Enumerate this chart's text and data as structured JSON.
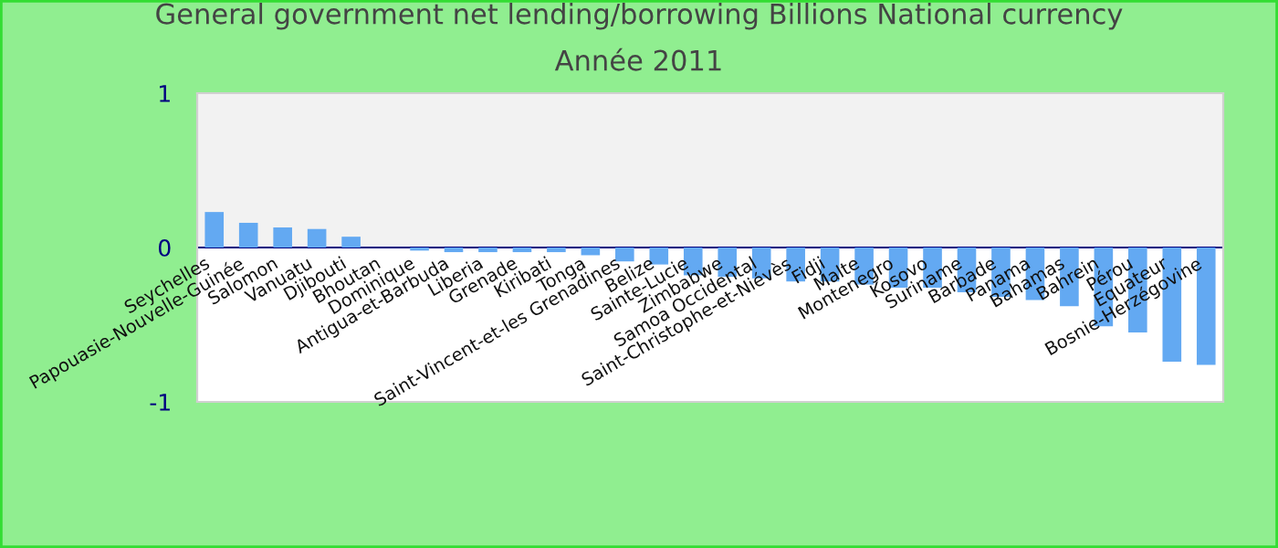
{
  "chart_data": {
    "type": "bar",
    "title": "General government net lending/borrowing Billions National currency",
    "subtitle": "Année 2011",
    "categories": [
      "Seychelles",
      "Papouasie-Nouvelle-Guinée",
      "Salomon",
      "Vanuatu",
      "Djibouti",
      "Bhoutan",
      "Dominique",
      "Antigua-et-Barbuda",
      "Liberia",
      "Grenade",
      "Kiribati",
      "Tonga",
      "Saint-Vincent-et-les Grenadines",
      "Belize",
      "Sainte-Lucie",
      "Zimbabwe",
      "Samoa Occidental",
      "Saint-Christophe-et-Niévès",
      "Fidji",
      "Malte",
      "Montenegro",
      "Kosovo",
      "Suriname",
      "Barbade",
      "Panama",
      "Bahamas",
      "Bahrein",
      "Pérou",
      "Equateur",
      "Bosnie-Herzégovine"
    ],
    "values": [
      0.23,
      0.16,
      0.13,
      0.12,
      0.07,
      0,
      -0.02,
      -0.03,
      -0.03,
      -0.03,
      -0.03,
      -0.05,
      -0.09,
      -0.11,
      -0.18,
      -0.19,
      -0.2,
      -0.22,
      -0.22,
      -0.24,
      -0.26,
      -0.26,
      -0.29,
      -0.32,
      -0.34,
      -0.38,
      -0.51,
      -0.55,
      -0.74,
      -0.76
    ],
    "color": "#63a9f2",
    "ylim": [
      -1,
      1
    ],
    "yticks": [
      -1,
      0,
      1
    ],
    "ref_lines": [
      {
        "axis": "y",
        "value": 0,
        "color": "#000080",
        "line_style": "solid"
      }
    ],
    "bands": [
      {
        "axis": "y",
        "from": 0,
        "to": 1,
        "color": "#f2f2f2"
      }
    ],
    "legend": false
  }
}
